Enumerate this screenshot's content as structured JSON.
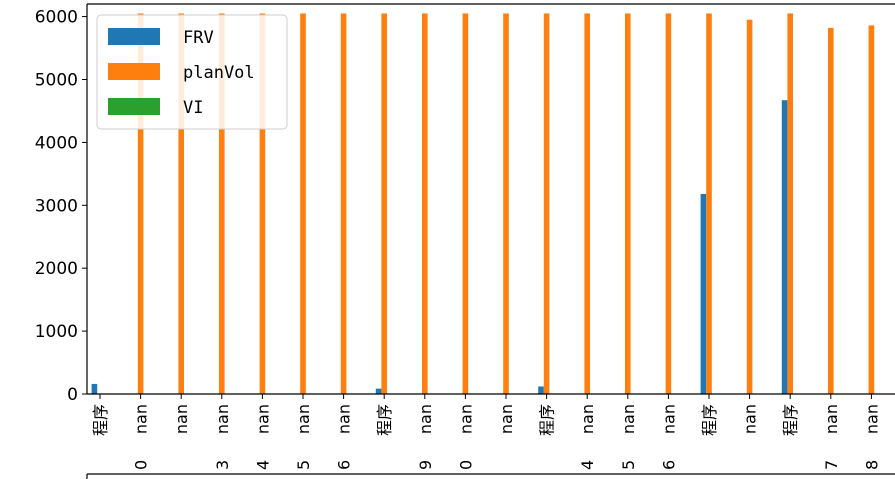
{
  "chart_data": {
    "type": "bar",
    "title": "",
    "xlabel": "",
    "ylabel": "",
    "ylim": [
      0,
      6200
    ],
    "yticks": [
      0,
      1000,
      2000,
      3000,
      4000,
      5000,
      6000
    ],
    "grid": false,
    "legend_position": "top-left",
    "categories": [
      {
        "label": "程序",
        "sub": ""
      },
      {
        "label": "nan",
        "sub": "0"
      },
      {
        "label": "nan",
        "sub": ""
      },
      {
        "label": "nan",
        "sub": "3"
      },
      {
        "label": "nan",
        "sub": "4"
      },
      {
        "label": "nan",
        "sub": "5"
      },
      {
        "label": "nan",
        "sub": "6"
      },
      {
        "label": "程序",
        "sub": ""
      },
      {
        "label": "nan",
        "sub": "9"
      },
      {
        "label": "nan",
        "sub": "0"
      },
      {
        "label": "nan",
        "sub": ""
      },
      {
        "label": "程序",
        "sub": ""
      },
      {
        "label": "nan",
        "sub": "4"
      },
      {
        "label": "nan",
        "sub": "5"
      },
      {
        "label": "nan",
        "sub": "6"
      },
      {
        "label": "程序",
        "sub": ""
      },
      {
        "label": "nan",
        "sub": ""
      },
      {
        "label": "程序",
        "sub": ""
      },
      {
        "label": "nan",
        "sub": "7"
      },
      {
        "label": "nan",
        "sub": "8"
      }
    ],
    "series": [
      {
        "name": "FRV",
        "color": "#1f77b4",
        "values": [
          160,
          0,
          0,
          0,
          0,
          0,
          0,
          85,
          0,
          0,
          0,
          120,
          0,
          0,
          0,
          3180,
          0,
          4670,
          0,
          0
        ]
      },
      {
        "name": "planVol",
        "color": "#ff7f0e",
        "values": [
          0,
          6050,
          6050,
          6050,
          6050,
          6050,
          6050,
          6050,
          6050,
          6050,
          6050,
          6050,
          6050,
          6050,
          6050,
          6050,
          5950,
          6050,
          5820,
          5860
        ]
      },
      {
        "name": "VI",
        "color": "#2ca02c",
        "values": [
          0,
          0,
          0,
          0,
          0,
          0,
          0,
          0,
          0,
          0,
          0,
          0,
          0,
          0,
          0,
          0,
          0,
          0,
          0,
          0
        ]
      }
    ]
  }
}
